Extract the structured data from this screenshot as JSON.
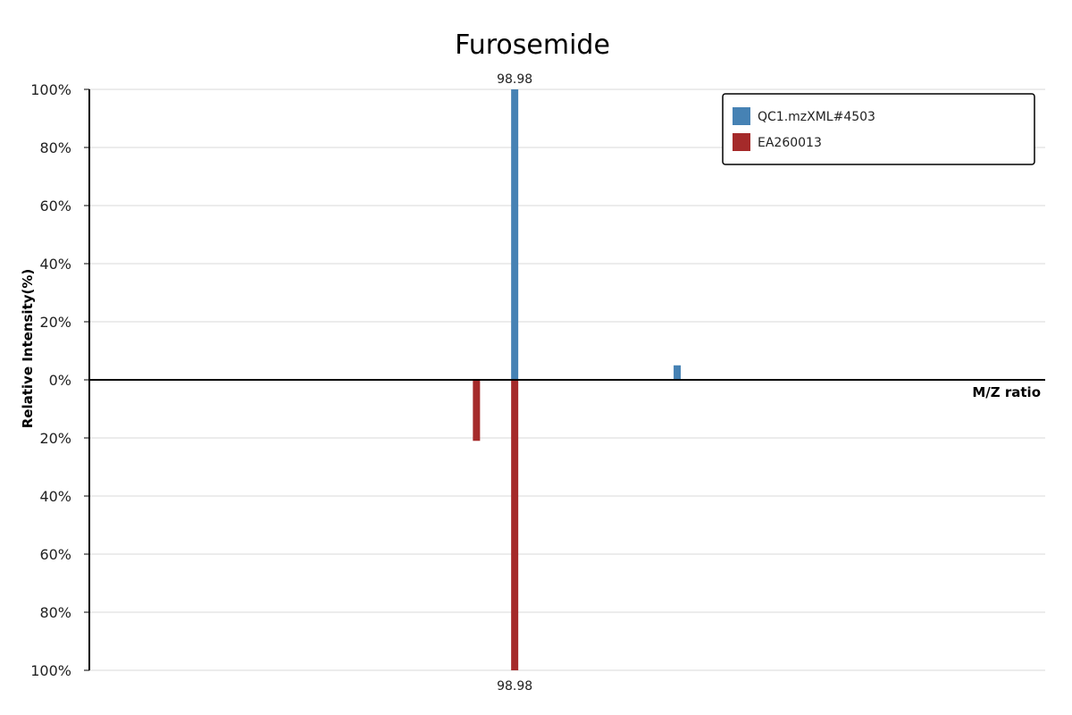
{
  "chart_data": {
    "type": "bar",
    "title": "Furosemide",
    "xlabel": "M/Z ratio",
    "ylabel": "Relative Intensity(%)",
    "ylim_top": [
      0,
      100
    ],
    "ylim_bottom": [
      0,
      100
    ],
    "y_ticks_top": [
      "100%",
      "80%",
      "60%",
      "40%",
      "20%",
      "0%"
    ],
    "y_ticks_bottom": [
      "20%",
      "40%",
      "60%",
      "80%",
      "100%"
    ],
    "y_tick_values_top": [
      100,
      80,
      60,
      40,
      20,
      0
    ],
    "y_tick_values_bottom": [
      20,
      40,
      60,
      80,
      100
    ],
    "x_domain": [
      0,
      1000
    ],
    "grid": true,
    "legend_position": "top-right",
    "peak_label_top": "98.98",
    "peak_label_bottom": "98.98",
    "peak_label_x": 445,
    "series": [
      {
        "name": "QC1.mzXML#4503",
        "direction": "up",
        "color": "#4682b4",
        "peaks": [
          {
            "x": 445,
            "y": 100
          },
          {
            "x": 615,
            "y": 5
          }
        ]
      },
      {
        "name": "EA260013",
        "direction": "down",
        "color": "#a52a2a",
        "peaks": [
          {
            "x": 405,
            "y": 21
          },
          {
            "x": 445,
            "y": 100
          }
        ]
      }
    ]
  }
}
